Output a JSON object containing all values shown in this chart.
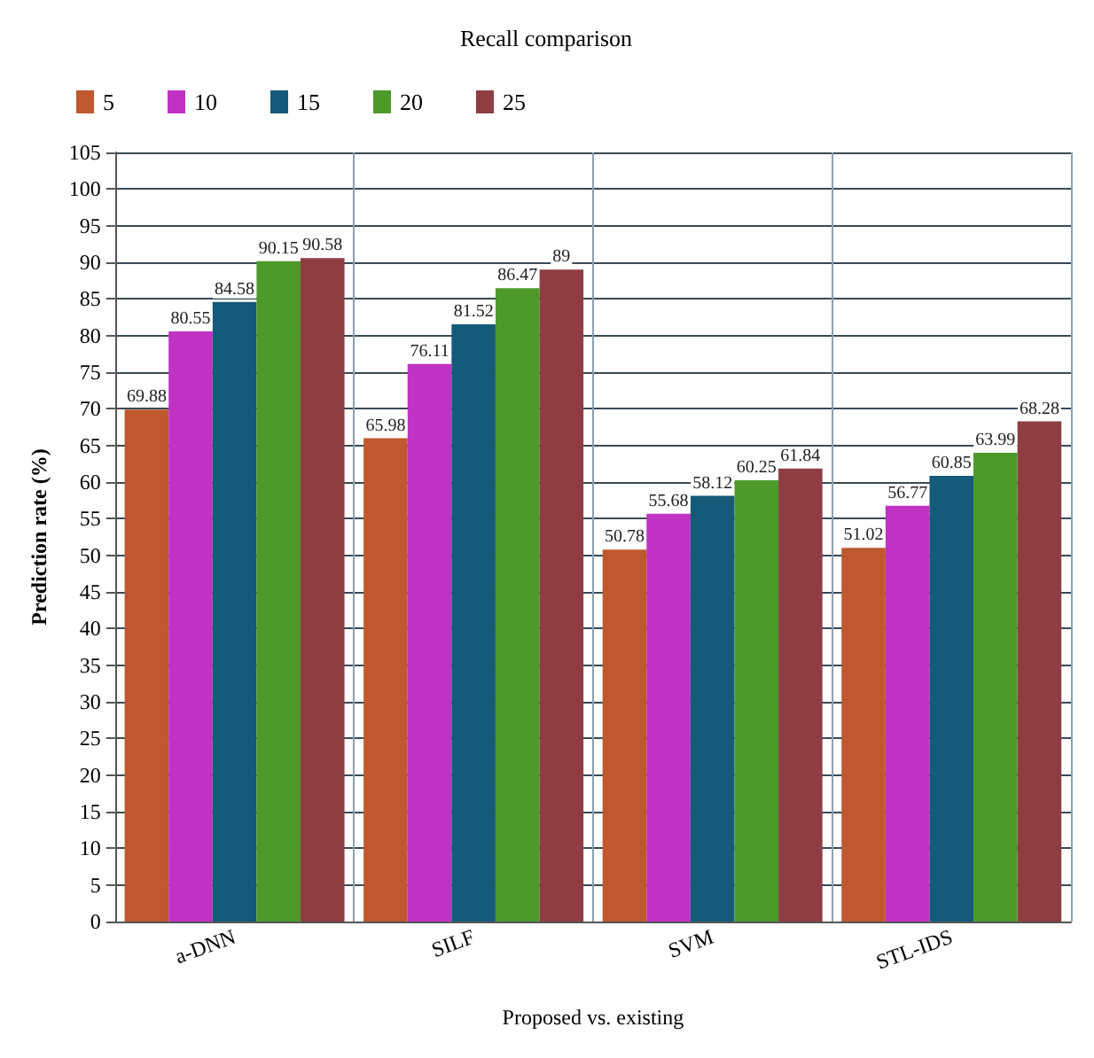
{
  "chart_data": {
    "type": "bar",
    "title": "Recall comparison",
    "xlabel": "Proposed vs. existing",
    "ylabel": "Prediction rate (%)",
    "categories": [
      "a-DNN",
      "SILF",
      "SVM",
      "STL-IDS"
    ],
    "series": [
      {
        "name": "5",
        "color": "#c0582f",
        "values": [
          69.88,
          65.98,
          50.78,
          51.02
        ]
      },
      {
        "name": "10",
        "color": "#c032c4",
        "values": [
          80.55,
          76.11,
          55.68,
          56.77
        ]
      },
      {
        "name": "15",
        "color": "#155a78",
        "values": [
          84.58,
          81.52,
          58.12,
          60.85
        ]
      },
      {
        "name": "20",
        "color": "#4d9a2a",
        "values": [
          90.15,
          86.47,
          60.25,
          63.99
        ]
      },
      {
        "name": "25",
        "color": "#8e3e42",
        "values": [
          90.58,
          89,
          61.84,
          68.28
        ]
      }
    ],
    "ylim": [
      0,
      105
    ],
    "yticks": [
      0,
      5,
      10,
      15,
      20,
      25,
      30,
      35,
      40,
      45,
      50,
      55,
      60,
      65,
      70,
      75,
      80,
      85,
      90,
      95,
      100,
      105
    ],
    "grid": true,
    "legend": "top left",
    "data_labels": true
  }
}
